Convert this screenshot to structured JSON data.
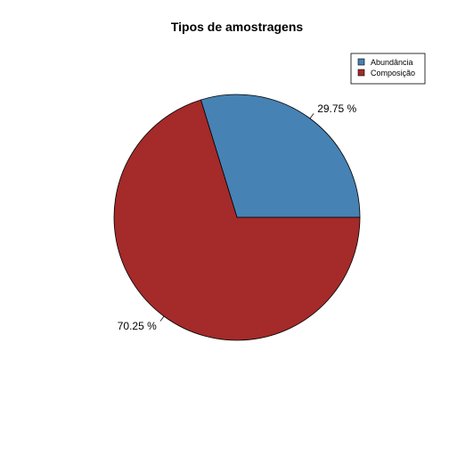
{
  "chart_data": {
    "type": "pie",
    "title": "Tipos de amostragens",
    "slices": [
      {
        "name": "Abundância",
        "value": 29.75,
        "label": "29.75 %",
        "color": "#4682B4"
      },
      {
        "name": "Composição",
        "value": 70.25,
        "label": "70.25 %",
        "color": "#A52A2A"
      }
    ],
    "start_angle_deg": 0,
    "direction": "counterclockwise",
    "legend_position": "top-right",
    "border_color": "#000000"
  }
}
